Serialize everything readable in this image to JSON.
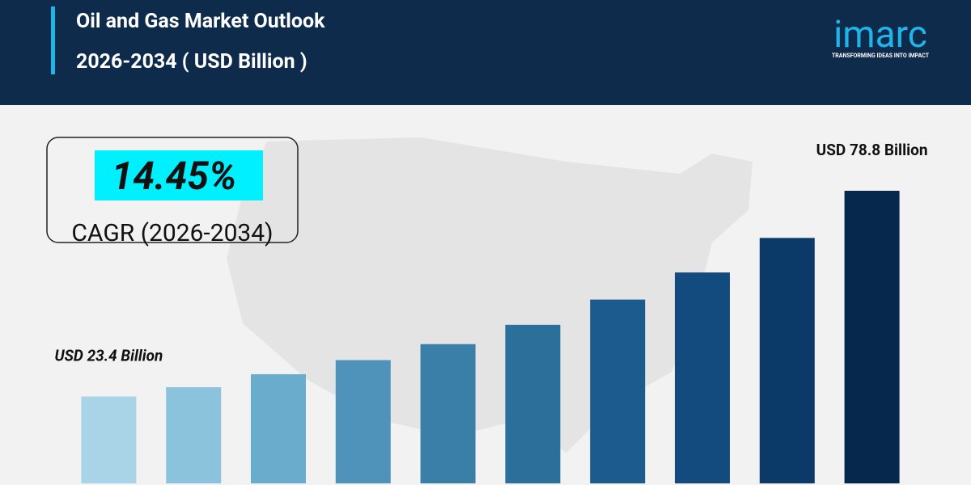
{
  "header": {
    "title": "Oil and Gas Market Outlook",
    "subtitle": "2026-2034 ( USD Billion )",
    "logo": "imarc",
    "tagline": "TRANSFORMING IDEAS INTO IMPACT"
  },
  "cagr": {
    "value_label": "14.45%",
    "label": "CAGR (2026-2034)"
  },
  "chart_data": {
    "type": "bar",
    "categories": [
      null,
      null,
      null,
      null,
      null,
      null,
      null,
      null,
      null,
      null
    ],
    "values": [
      23.4,
      25.9,
      29.4,
      33.2,
      37.5,
      42.7,
      49.5,
      56.8,
      66.1,
      78.8
    ],
    "value_labels": [
      "USD 23.4 Billion",
      null,
      null,
      null,
      null,
      null,
      null,
      null,
      null,
      "USD 78.8 Billion"
    ],
    "colors": [
      "#a9d4e8",
      "#8cc3dc",
      "#6aaccc",
      "#4f93bb",
      "#3a7fa8",
      "#2b6f9a",
      "#1c5b8e",
      "#134b7e",
      "#0c3a68",
      "#07284d"
    ]
  }
}
